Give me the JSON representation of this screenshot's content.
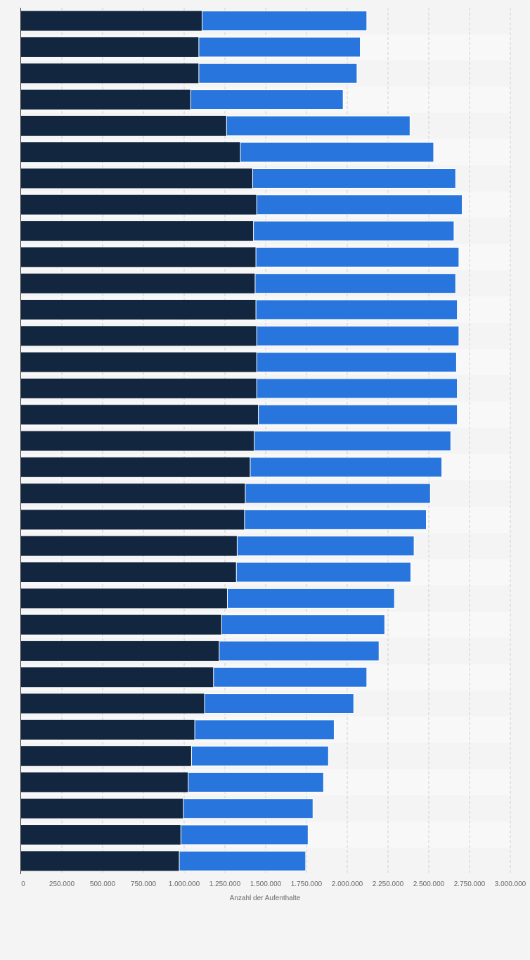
{
  "chart_data": {
    "type": "bar",
    "stacked": true,
    "orientation": "horizontal",
    "xlabel": "Anzahl der Aufenthalte",
    "xlim": [
      0,
      3000000
    ],
    "x_tick_labels": [
      "0",
      "250.000",
      "500.000",
      "750.000",
      "1.000.000",
      "1.250.000",
      "1.500.000",
      "1.750.000",
      "2.000.000",
      "2.250.000",
      "2.500.000",
      "2.750.000",
      "3.000.000"
    ],
    "x_ticks": [
      0,
      250000,
      500000,
      750000,
      1000000,
      1250000,
      1500000,
      1750000,
      2000000,
      2250000,
      2500000,
      2750000,
      3000000
    ],
    "grid": true,
    "colors": [
      "#12263f",
      "#2876dd"
    ],
    "series": [
      {
        "values": [
          1110000,
          1090000,
          1090000,
          1040000,
          1260000,
          1345000,
          1420000,
          1445000,
          1425000,
          1440000,
          1435000,
          1440000,
          1445000,
          1445000,
          1445000,
          1455000,
          1430000,
          1405000,
          1375000,
          1370000,
          1325000,
          1320000,
          1265000,
          1230000,
          1215000,
          1180000,
          1125000,
          1065000,
          1045000,
          1025000,
          995000,
          980000,
          970000
        ]
      },
      {
        "values": [
          1010000,
          990000,
          970000,
          935000,
          1125000,
          1185000,
          1245000,
          1260000,
          1230000,
          1245000,
          1230000,
          1235000,
          1240000,
          1225000,
          1230000,
          1220000,
          1205000,
          1175000,
          1135000,
          1115000,
          1085000,
          1070000,
          1025000,
          1000000,
          980000,
          940000,
          915000,
          855000,
          840000,
          830000,
          795000,
          780000,
          775000
        ]
      }
    ]
  }
}
